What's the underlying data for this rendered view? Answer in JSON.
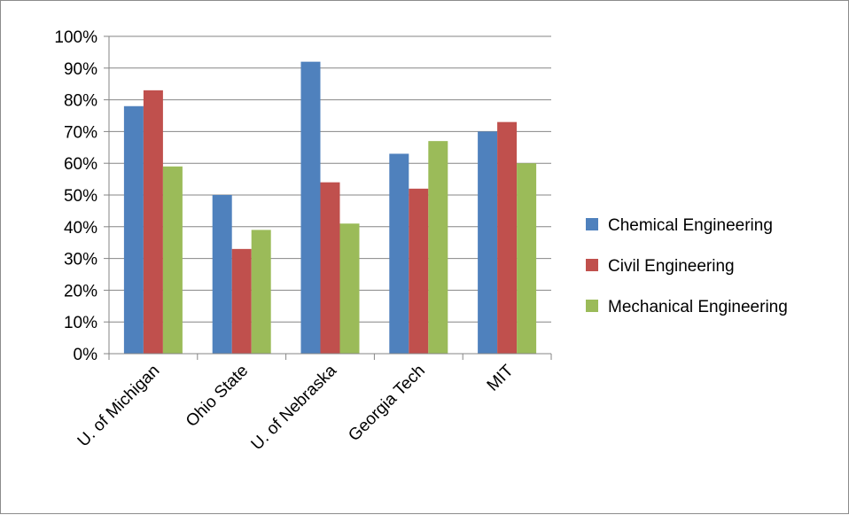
{
  "chart_data": {
    "type": "bar",
    "categories": [
      "U. of Michigan",
      "Ohio State",
      "U. of Nebraska",
      "Georgia Tech",
      "MIT"
    ],
    "series": [
      {
        "name": "Chemical Engineering",
        "values": [
          78,
          50,
          92,
          63,
          70
        ],
        "color": "#4F81BD"
      },
      {
        "name": "Civil Engineering",
        "values": [
          83,
          33,
          54,
          52,
          73
        ],
        "color": "#C0504D"
      },
      {
        "name": "Mechanical Engineering",
        "values": [
          59,
          39,
          41,
          67,
          60
        ],
        "color": "#9BBB59"
      }
    ],
    "y_ticks": [
      "0%",
      "10%",
      "20%",
      "30%",
      "40%",
      "50%",
      "60%",
      "70%",
      "80%",
      "90%",
      "100%"
    ],
    "ylim": [
      0,
      100
    ],
    "y_unit": "%",
    "grid": true,
    "legend_position": "right",
    "title": "",
    "xlabel": "",
    "ylabel": ""
  }
}
